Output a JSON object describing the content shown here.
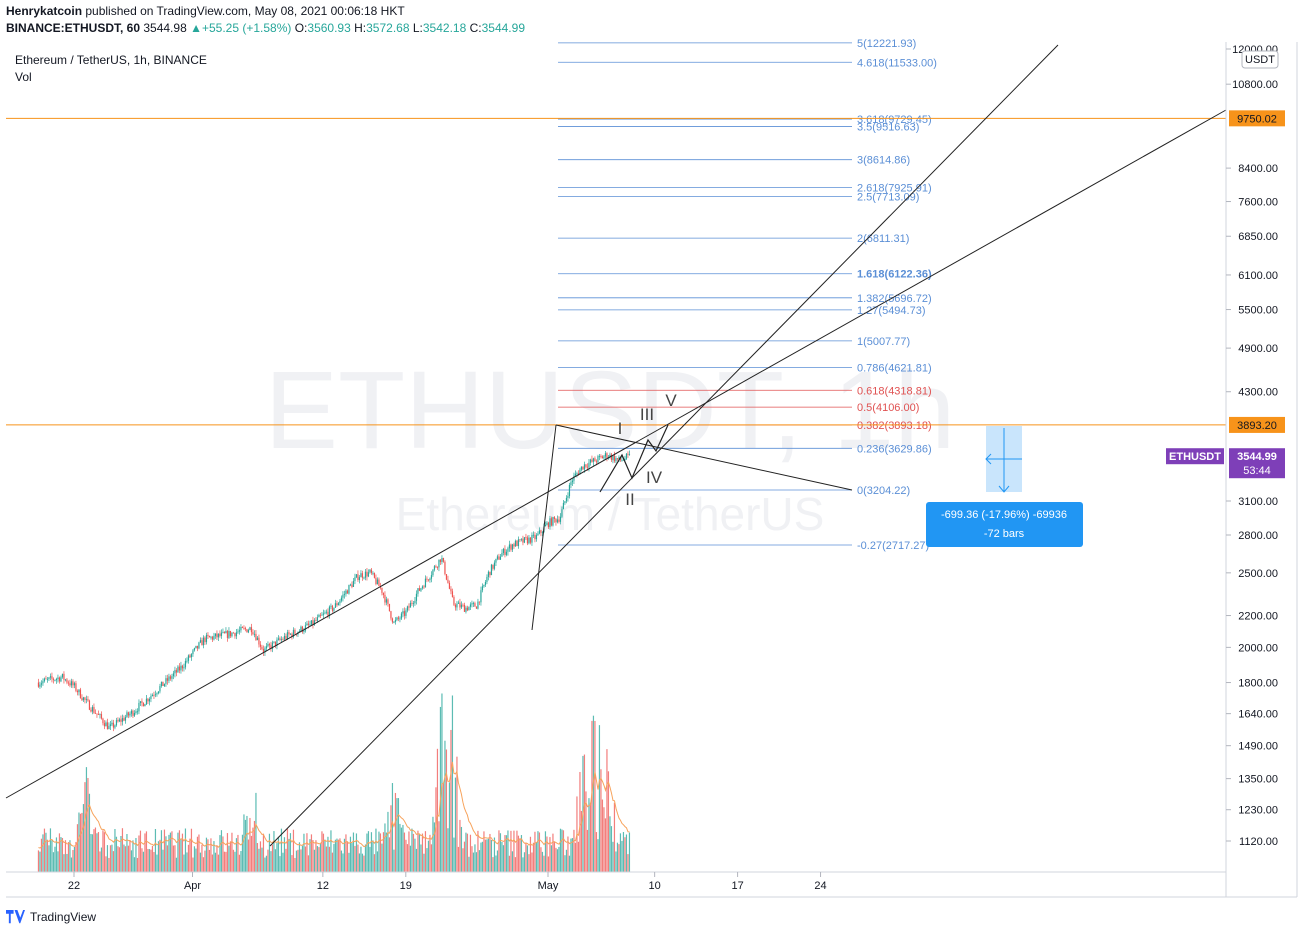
{
  "header": {
    "author": "Henrykatcoin",
    "published": " published on TradingView.com, May 08, 2021 00:06:18 HKT",
    "symbol": "BINANCE:ETHUSDT, 60",
    "last": "3544.98",
    "change": "▲+55.25 (+1.58%)",
    "o_label": "O:",
    "o": "3560.93",
    "h_label": "H:",
    "h": "3572.68",
    "l_label": "L:",
    "l": "3542.18",
    "c_label": "C:",
    "c": "3544.99"
  },
  "legend": {
    "title": "Ethereum / TetherUS, 1h, BINANCE",
    "vol": "Vol"
  },
  "watermark": {
    "line1": "ETHUSDT, 1h",
    "line2": "Ethereum / TetherUS"
  },
  "footer": {
    "brand": "TradingView"
  },
  "colors": {
    "up": "#26a69a",
    "down": "#ef5350",
    "fib_blue": "#5b8fd6",
    "fib_red": "#e05252",
    "hline": "#f7931a",
    "measure": "#2196f3",
    "price_tag": "#7e3fb8"
  },
  "chart_data": {
    "type": "candlestick",
    "title": "Ethereum / TetherUS, 1h, BINANCE",
    "currency": "USDT",
    "y_scale": "log",
    "ylim": [
      1040,
      12300
    ],
    "y_ticks": [
      "12000.00",
      "10800.00",
      "9750.02",
      "8400.00",
      "7600.00",
      "6850.00",
      "6100.00",
      "5500.00",
      "4900.00",
      "4300.00",
      "3893.20",
      "3544.99",
      "3100.00",
      "2800.00",
      "2500.00",
      "2200.00",
      "2000.00",
      "1800.00",
      "1640.00",
      "1490.00",
      "1350.00",
      "1230.00",
      "1120.00"
    ],
    "x_ticks": [
      "22",
      "Apr",
      "12",
      "19",
      "May",
      "10",
      "17",
      "24"
    ],
    "price_path": [
      [
        "2021-03-19",
        1800
      ],
      [
        "2021-03-21",
        1830
      ],
      [
        "2021-03-22",
        1780
      ],
      [
        "2021-03-23",
        1700
      ],
      [
        "2021-03-25",
        1570
      ],
      [
        "2021-03-27",
        1650
      ],
      [
        "2021-03-29",
        1760
      ],
      [
        "2021-03-31",
        1880
      ],
      [
        "2021-04-02",
        2050
      ],
      [
        "2021-04-04",
        2080
      ],
      [
        "2021-04-06",
        2120
      ],
      [
        "2021-04-07",
        1980
      ],
      [
        "2021-04-09",
        2070
      ],
      [
        "2021-04-11",
        2140
      ],
      [
        "2021-04-13",
        2260
      ],
      [
        "2021-04-15",
        2480
      ],
      [
        "2021-04-16",
        2500
      ],
      [
        "2021-04-17",
        2370
      ],
      [
        "2021-04-18",
        2150
      ],
      [
        "2021-04-19",
        2220
      ],
      [
        "2021-04-20",
        2360
      ],
      [
        "2021-04-21",
        2480
      ],
      [
        "2021-04-22",
        2620
      ],
      [
        "2021-04-23",
        2280
      ],
      [
        "2021-04-24",
        2250
      ],
      [
        "2021-04-25",
        2270
      ],
      [
        "2021-04-26",
        2500
      ],
      [
        "2021-04-27",
        2640
      ],
      [
        "2021-04-28",
        2720
      ],
      [
        "2021-04-29",
        2750
      ],
      [
        "2021-04-30",
        2780
      ],
      [
        "2021-05-01",
        2900
      ],
      [
        "2021-05-02",
        2950
      ],
      [
        "2021-05-03",
        3300
      ],
      [
        "2021-05-04",
        3450
      ],
      [
        "2021-05-05",
        3500
      ],
      [
        "2021-05-06",
        3560
      ],
      [
        "2021-05-07",
        3500
      ],
      [
        "2021-05-08",
        3545
      ]
    ],
    "fibonacci": [
      {
        "ratio": "5",
        "label": "5(12221.93)",
        "value": 12221.93,
        "color": "blue"
      },
      {
        "ratio": "4.618",
        "label": "4.618(11533.00)",
        "value": 11533.0,
        "color": "blue"
      },
      {
        "ratio": "3.618",
        "label": "3.618(9729.45)",
        "value": 9729.45,
        "color": "blue"
      },
      {
        "ratio": "3.5",
        "label": "3.5(9516.63)",
        "value": 9516.63,
        "color": "blue"
      },
      {
        "ratio": "3",
        "label": "3(8614.86)",
        "value": 8614.86,
        "color": "blue"
      },
      {
        "ratio": "2.618",
        "label": "2.618(7925.91)",
        "value": 7925.91,
        "color": "blue"
      },
      {
        "ratio": "2.5",
        "label": "2.5(7713.09)",
        "value": 7713.09,
        "color": "blue"
      },
      {
        "ratio": "2",
        "label": "2(6811.31)",
        "value": 6811.31,
        "color": "blue"
      },
      {
        "ratio": "1.618",
        "label": "1.618(6122.36)",
        "value": 6122.36,
        "color": "blue",
        "bold": true
      },
      {
        "ratio": "1.382",
        "label": "1.382(5696.72)",
        "value": 5696.72,
        "color": "blue"
      },
      {
        "ratio": "1.27",
        "label": "1.27(5494.73)",
        "value": 5494.73,
        "color": "blue"
      },
      {
        "ratio": "1",
        "label": "1(5007.77)",
        "value": 5007.77,
        "color": "blue"
      },
      {
        "ratio": "0.786",
        "label": "0.786(4621.81)",
        "value": 4621.81,
        "color": "blue"
      },
      {
        "ratio": "0.618",
        "label": "0.618(4318.81)",
        "value": 4318.81,
        "color": "red"
      },
      {
        "ratio": "0.5",
        "label": "0.5(4106.00)",
        "value": 4106.0,
        "color": "red"
      },
      {
        "ratio": "0.382",
        "label": "0.382(3893.18)",
        "value": 3893.18,
        "color": "red"
      },
      {
        "ratio": "0.236",
        "label": "0.236(3629.86)",
        "value": 3629.86,
        "color": "blue"
      },
      {
        "ratio": "0",
        "label": "0(3204.22)",
        "value": 3204.22,
        "color": "blue"
      },
      {
        "ratio": "-0.27",
        "label": "-0.27(2717.27)",
        "value": 2717.27,
        "color": "blue"
      }
    ],
    "horizontal_lines": [
      {
        "value": 9750.02,
        "label": "9750.02"
      },
      {
        "value": 3893.2,
        "label": "3893.20"
      }
    ],
    "last_price_tag": {
      "symbol": "ETHUSDT",
      "value": "3544.99",
      "countdown": "53:44"
    },
    "measure": {
      "line1": "-699.36 (-17.96%) -69936",
      "line2": "-72 bars"
    },
    "elliott_labels": [
      "I",
      "II",
      "III",
      "IV",
      "V"
    ]
  }
}
